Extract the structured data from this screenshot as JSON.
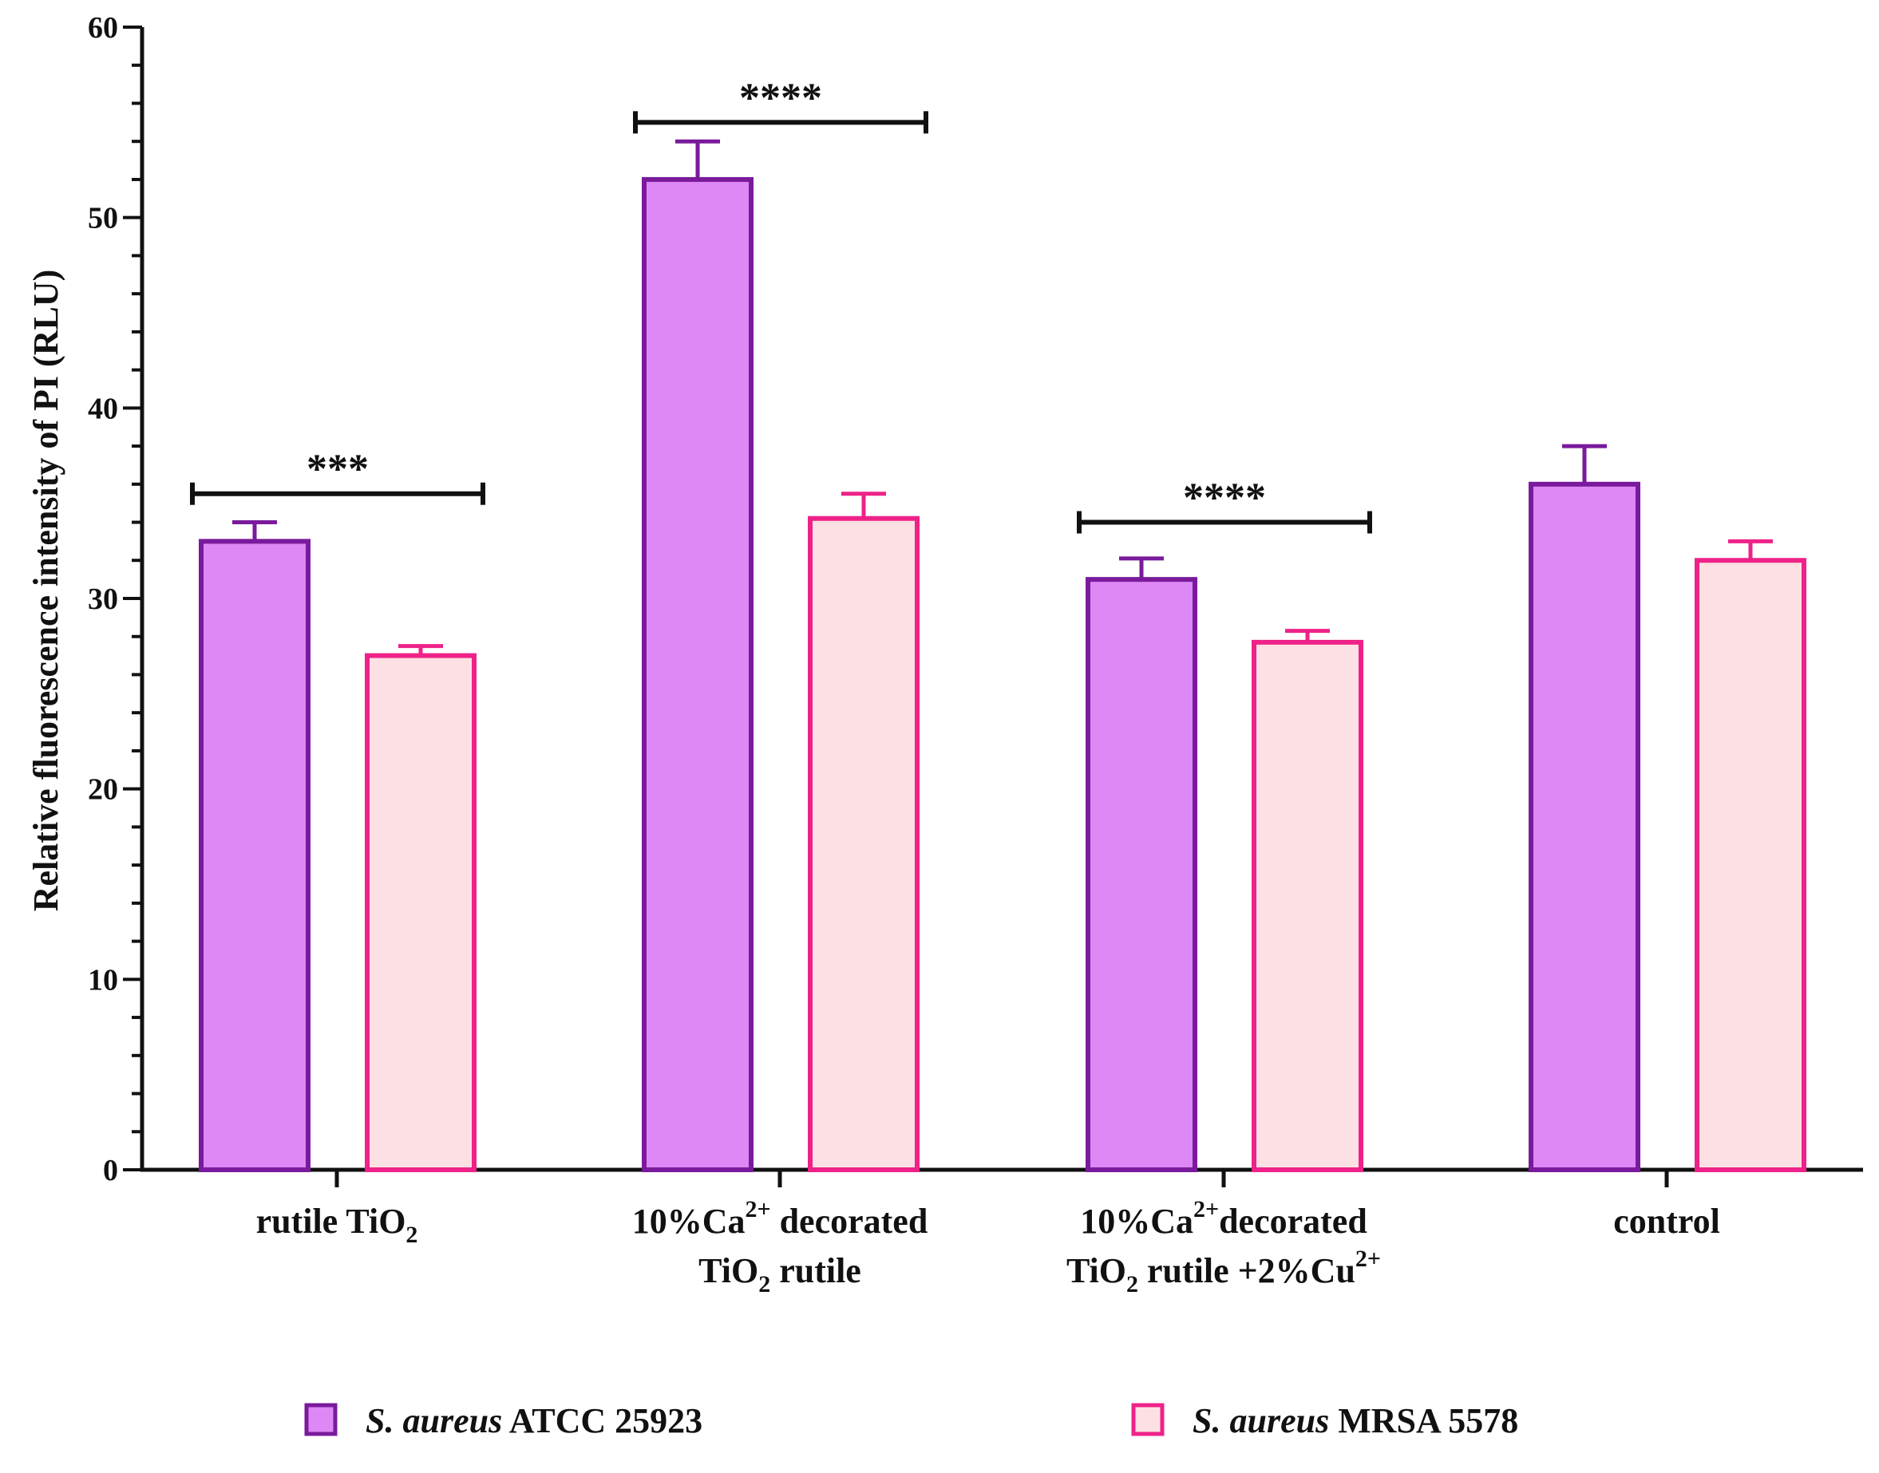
{
  "chart_data": {
    "type": "bar",
    "title": "",
    "xlabel": "",
    "ylabel": "Relative fluorescence intensity of PI (RLU)",
    "ylim": [
      0,
      60
    ],
    "y_ticks": [
      "0",
      "10",
      "20",
      "30",
      "40",
      "50",
      "60"
    ],
    "grid": false,
    "legend_position": "bottom",
    "categories": [
      {
        "parts": [
          [
            "rutile TiO",
            "",
            "2",
            ""
          ]
        ]
      },
      {
        "parts": [
          [
            "10%Ca",
            "2+",
            "",
            " decorated"
          ],
          [
            "TiO",
            "",
            "2",
            " rutile"
          ]
        ]
      },
      {
        "parts": [
          [
            "10%Ca",
            "2+",
            "",
            "decorated"
          ],
          [
            "TiO",
            "",
            "2",
            " rutile +2%Cu",
            "2+"
          ]
        ]
      },
      {
        "parts": [
          [
            "control",
            "",
            "",
            ""
          ]
        ]
      }
    ],
    "series": [
      {
        "name_italic": "S. aureus",
        "name_rest": " ATCC 25923",
        "values": [
          33,
          52,
          31,
          36
        ],
        "errors": [
          1.0,
          2.0,
          1.1,
          2.0
        ],
        "fill": "#dd88f5",
        "stroke": "#7a1a9c"
      },
      {
        "name_italic": "S. aureus",
        "name_rest": " MRSA 5578",
        "values": [
          27,
          34.2,
          27.7,
          32
        ],
        "errors": [
          0.5,
          1.3,
          0.6,
          1.0
        ],
        "fill": "#fde0e3",
        "stroke": "#ee2288"
      }
    ],
    "significance": [
      {
        "category": 0,
        "label": "***",
        "y": 35.5
      },
      {
        "category": 1,
        "label": "****",
        "y": 55
      },
      {
        "category": 2,
        "label": "****",
        "y": 34
      }
    ]
  }
}
